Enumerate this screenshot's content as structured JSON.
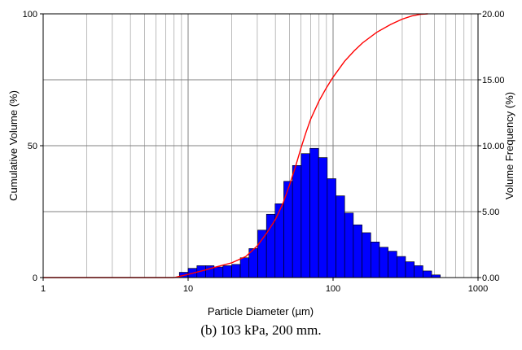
{
  "caption": "(b) 103 kPa, 200 mm.",
  "chart_data": {
    "type": "bar",
    "x_scale": "log",
    "xlabel": "Particle Diameter (µm)",
    "ylabel_left": "Cumulative Volume (%)",
    "ylabel_right": "Volume Frequency (%)",
    "xlim": [
      1,
      1000
    ],
    "ylim_left": [
      0,
      100
    ],
    "ylim_right": [
      0,
      20
    ],
    "x_ticks": [
      "1",
      "10",
      "100",
      "1000"
    ],
    "y_ticks_left": [
      "0",
      "50",
      "100"
    ],
    "y_ticks_right": [
      "0.00",
      "5.00",
      "10.00",
      "15.00",
      "20.00"
    ],
    "grid": true,
    "colors": {
      "bars": "#0000ff",
      "bar_edge": "#000000",
      "cumulative": "#ff0000",
      "grid": "#a0a0a0"
    },
    "series": [
      {
        "axis": "right",
        "bins": [
          {
            "x0": 8.7,
            "x1": 10.0,
            "v": 0.4
          },
          {
            "x0": 10.0,
            "x1": 11.5,
            "v": 0.7
          },
          {
            "x0": 11.5,
            "x1": 13.2,
            "v": 0.9
          },
          {
            "x0": 13.2,
            "x1": 15.1,
            "v": 0.9
          },
          {
            "x0": 15.1,
            "x1": 17.4,
            "v": 0.8
          },
          {
            "x0": 17.4,
            "x1": 20.0,
            "v": 0.9
          },
          {
            "x0": 20.0,
            "x1": 22.9,
            "v": 1.0
          },
          {
            "x0": 22.9,
            "x1": 26.3,
            "v": 1.5
          },
          {
            "x0": 26.3,
            "x1": 30.2,
            "v": 2.2
          },
          {
            "x0": 30.2,
            "x1": 34.7,
            "v": 3.6
          },
          {
            "x0": 34.7,
            "x1": 39.8,
            "v": 4.8
          },
          {
            "x0": 39.8,
            "x1": 45.7,
            "v": 5.6
          },
          {
            "x0": 45.7,
            "x1": 52.5,
            "v": 7.3
          },
          {
            "x0": 52.5,
            "x1": 60.3,
            "v": 8.5
          },
          {
            "x0": 60.3,
            "x1": 69.2,
            "v": 9.4
          },
          {
            "x0": 69.2,
            "x1": 79.4,
            "v": 9.8
          },
          {
            "x0": 79.4,
            "x1": 91.2,
            "v": 9.1
          },
          {
            "x0": 91.2,
            "x1": 104.7,
            "v": 7.5
          },
          {
            "x0": 104.7,
            "x1": 120.2,
            "v": 6.2
          },
          {
            "x0": 120.2,
            "x1": 138.0,
            "v": 4.9
          },
          {
            "x0": 138.0,
            "x1": 158.5,
            "v": 4.0
          },
          {
            "x0": 158.5,
            "x1": 182.0,
            "v": 3.4
          },
          {
            "x0": 182.0,
            "x1": 208.9,
            "v": 2.7
          },
          {
            "x0": 208.9,
            "x1": 239.9,
            "v": 2.3
          },
          {
            "x0": 239.9,
            "x1": 275.4,
            "v": 2.0
          },
          {
            "x0": 275.4,
            "x1": 316.2,
            "v": 1.6
          },
          {
            "x0": 316.2,
            "x1": 363.1,
            "v": 1.2
          },
          {
            "x0": 363.1,
            "x1": 416.9,
            "v": 0.9
          },
          {
            "x0": 416.9,
            "x1": 478.6,
            "v": 0.5
          },
          {
            "x0": 478.6,
            "x1": 549.5,
            "v": 0.2
          }
        ]
      },
      {
        "axis": "left",
        "x": [
          1,
          8,
          10,
          13,
          16,
          20,
          25,
          30,
          35,
          40,
          45,
          50,
          55,
          60,
          65,
          70,
          80,
          90,
          100,
          120,
          140,
          160,
          200,
          250,
          300,
          350,
          400,
          450
        ],
        "y": [
          0,
          0,
          1.2,
          2.8,
          4.2,
          5.6,
          8.0,
          12.0,
          17.0,
          22.0,
          28.0,
          35.0,
          42.0,
          49.0,
          55.0,
          60.0,
          67.0,
          72.0,
          76.0,
          82.0,
          86.0,
          89.0,
          93.0,
          96.0,
          98.0,
          99.2,
          99.8,
          100
        ]
      }
    ]
  }
}
